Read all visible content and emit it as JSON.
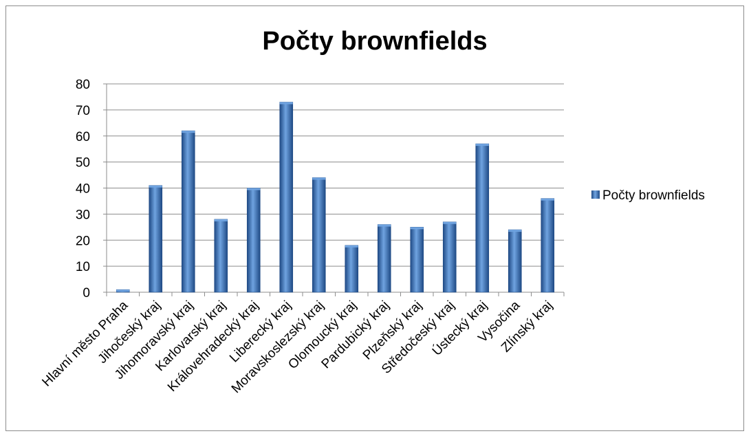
{
  "chart_data": {
    "type": "bar",
    "title": "Počty brownfields",
    "categories": [
      "Hlavní město Praha",
      "Jihočeský kraj",
      "Jihomoravský kraj",
      "Karlovarský kraj",
      "Královehradecký kraj",
      "Liberecký kraj",
      "Moravskoslezský kraj",
      "Olomoucký kraj",
      "Pardubický kraj",
      "Plzeňský kraj",
      "Středočeský kraj",
      "Ústecký kraj",
      "Vysočina",
      "Zlínský kraj"
    ],
    "series": [
      {
        "name": "Počty brownfields",
        "values": [
          1,
          41,
          62,
          28,
          40,
          73,
          44,
          18,
          26,
          25,
          27,
          57,
          24,
          36
        ]
      }
    ],
    "ylim": [
      0,
      80
    ],
    "yticks": [
      "0",
      "10",
      "20",
      "30",
      "40",
      "50",
      "60",
      "70",
      "80"
    ],
    "grid": true,
    "legend_position": "right"
  },
  "colors": {
    "bar": "#3a6fb5",
    "bar_light": "#6fa3e0",
    "bar_dark": "#1f4a85",
    "grid": "#8c8c8c"
  }
}
